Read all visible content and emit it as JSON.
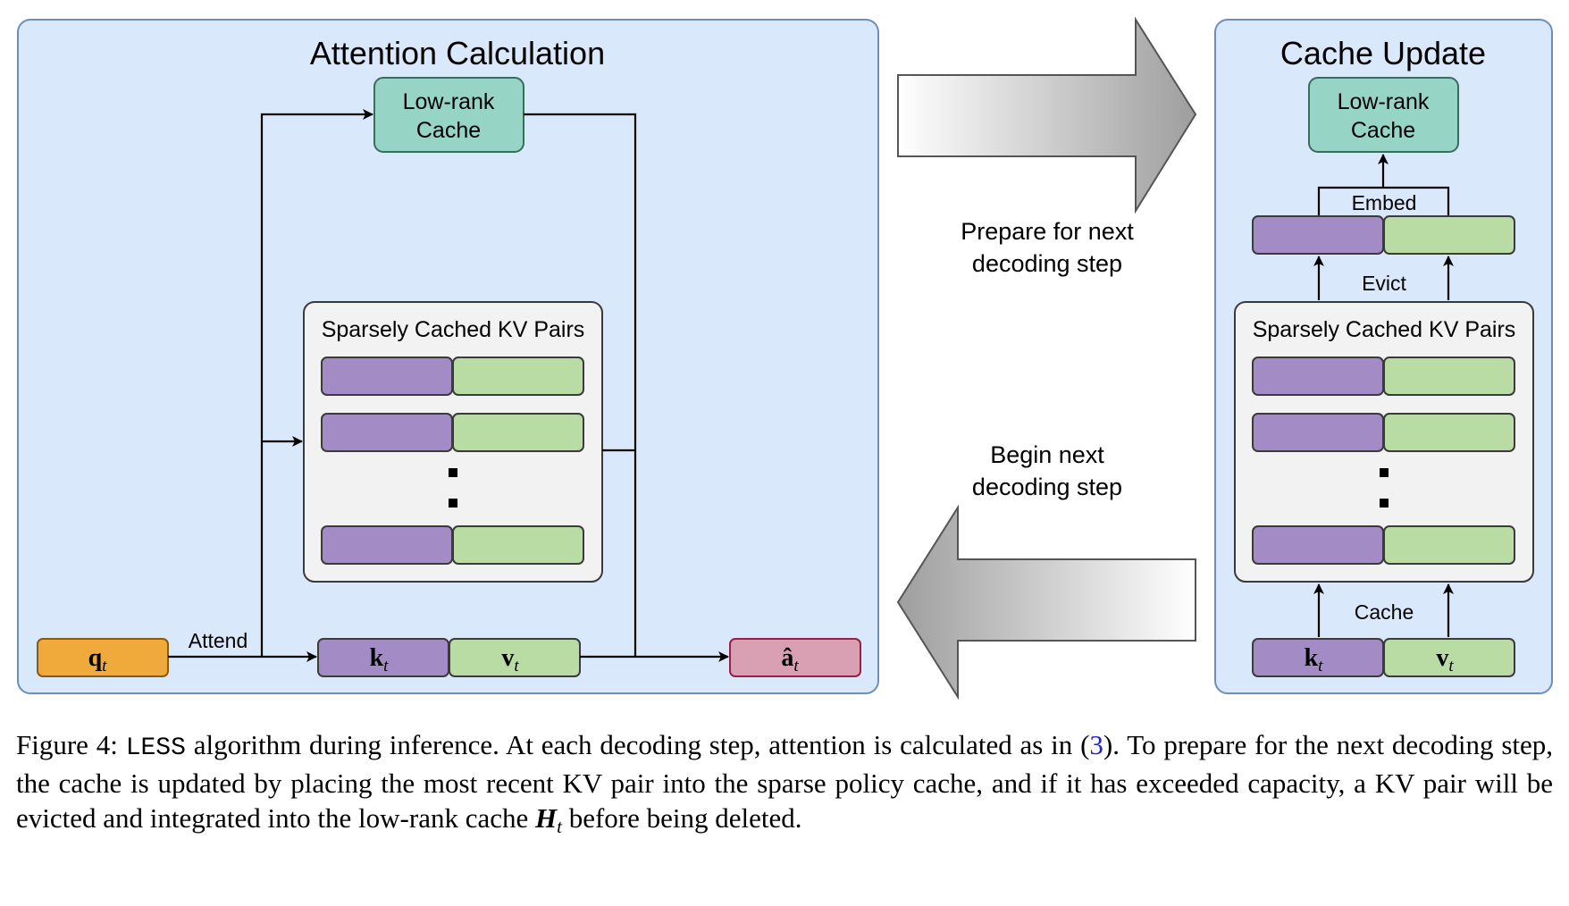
{
  "left_panel": {
    "title": "Attention Calculation",
    "low_rank_cache": {
      "line1": "Low-rank",
      "line2": "Cache"
    },
    "sparse_title": "Sparsely Cached KV Pairs",
    "attend_label": "Attend",
    "q": {
      "main": "q",
      "sub": "t"
    },
    "k": {
      "main": "k",
      "sub": "t"
    },
    "v": {
      "main": "v",
      "sub": "t"
    },
    "a": {
      "main": "â",
      "sub": "t"
    }
  },
  "middle": {
    "top_label": {
      "line1": "Prepare for next",
      "line2": "decoding step"
    },
    "bottom_label": {
      "line1": "Begin next",
      "line2": "decoding step"
    }
  },
  "right_panel": {
    "title": "Cache Update",
    "low_rank_cache": {
      "line1": "Low-rank",
      "line2": "Cache"
    },
    "embed_label": "Embed",
    "evict_label": "Evict",
    "sparse_title": "Sparsely Cached KV Pairs",
    "cache_label": "Cache",
    "k": {
      "main": "k",
      "sub": "t"
    },
    "v": {
      "main": "v",
      "sub": "t"
    }
  },
  "caption": {
    "figure_label": "Figure 4:",
    "algo_name": "LESS",
    "text_a": " algorithm during inference.  At each decoding step, attention is calculated as in (",
    "ref": "3",
    "text_b": ").  To prepare for the next decoding step, the cache is updated by placing the most recent KV pair into the sparse policy cache, and if it has exceeded capacity, a KV pair will be evicted and integrated into the low-rank cache ",
    "math_main": "H",
    "math_sub": "t",
    "text_c": " before being deleted."
  },
  "colors": {
    "panel_fill": "#dae8fc",
    "panel_stroke": "#6c8ebf",
    "key_purple": "#a38cc6",
    "value_green": "#b9dba4",
    "cache_teal": "#96d4c6",
    "query_orange": "#f0aa3c",
    "output_pink": "#d99fb2"
  }
}
